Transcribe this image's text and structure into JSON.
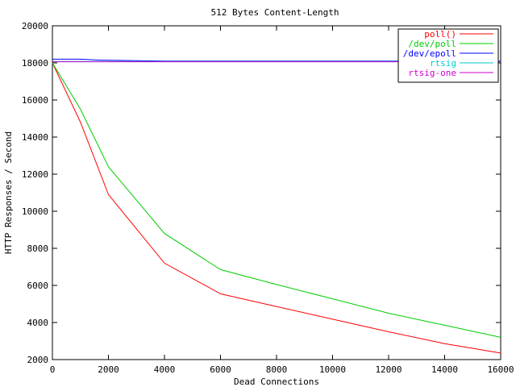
{
  "chart_data": {
    "type": "line",
    "title": "512 Bytes Content-Length",
    "xlabel": "Dead Connections",
    "ylabel": "HTTP Responses / Second",
    "xlim": [
      0,
      16000
    ],
    "ylim": [
      2000,
      20000
    ],
    "xticks": [
      0,
      2000,
      4000,
      6000,
      8000,
      10000,
      12000,
      14000,
      16000
    ],
    "yticks": [
      2000,
      4000,
      6000,
      8000,
      10000,
      12000,
      14000,
      16000,
      18000,
      20000
    ],
    "xtick_labels": [
      "0",
      "2000",
      "4000",
      "6000",
      "8000",
      "10000",
      "12000",
      "14000",
      "16000"
    ],
    "ytick_labels": [
      "2000",
      "4000",
      "6000",
      "8000",
      "10000",
      "12000",
      "14000",
      "16000",
      "18000",
      "20000"
    ],
    "grid": false,
    "legend_position": "top-right",
    "series": [
      {
        "name": "poll()",
        "color": "#ff0000",
        "x": [
          0,
          1000,
          2000,
          4000,
          6000,
          8000,
          10000,
          12000,
          14000,
          16000
        ],
        "y": [
          18000,
          14800,
          10900,
          7200,
          5550,
          4860,
          4180,
          3500,
          2860,
          2350
        ]
      },
      {
        "name": "/dev/poll",
        "color": "#00cc00",
        "x": [
          0,
          1000,
          2000,
          4000,
          6000,
          8000,
          10000,
          12000,
          14000,
          16000
        ],
        "y": [
          18000,
          15500,
          12400,
          8800,
          6850,
          6050,
          5280,
          4500,
          3850,
          3200
        ]
      },
      {
        "name": "/dev/epoll",
        "color": "#0000ff",
        "x": [
          0,
          1000,
          1700,
          4000,
          8000,
          12000,
          16000
        ],
        "y": [
          18200,
          18200,
          18150,
          18100,
          18100,
          18100,
          18100
        ]
      },
      {
        "name": "rtsig",
        "color": "#00cccc",
        "x": [
          0,
          4000,
          8000,
          12000,
          16000
        ],
        "y": [
          18080,
          18080,
          18080,
          18080,
          18080
        ]
      },
      {
        "name": "rtsig-one",
        "color": "#cc00cc",
        "x": [
          0,
          4000,
          8000,
          12000,
          16000
        ],
        "y": [
          18060,
          18060,
          18060,
          18060,
          18060
        ]
      }
    ]
  }
}
